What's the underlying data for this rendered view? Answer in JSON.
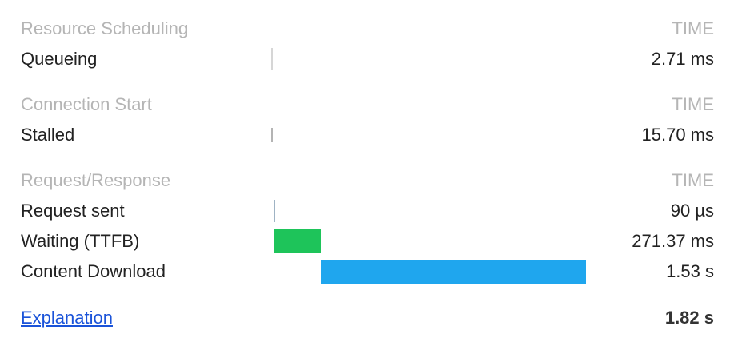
{
  "sections": [
    {
      "title": "Resource Scheduling",
      "time_header": "TIME",
      "rows": [
        {
          "label": "Queueing",
          "value": "2.71 ms",
          "start_s": 0,
          "duration_s": 0.00271,
          "color": "#d6d6d6"
        }
      ]
    },
    {
      "title": "Connection Start",
      "time_header": "TIME",
      "rows": [
        {
          "label": "Stalled",
          "value": "15.70 ms",
          "start_s": 0.00271,
          "duration_s": 0.0157,
          "color": "#b4b4b4"
        }
      ]
    },
    {
      "title": "Request/Response",
      "time_header": "TIME",
      "rows": [
        {
          "label": "Request sent",
          "value": "90 µs",
          "start_s": 0.01841,
          "duration_s": 9e-05,
          "color": "#9fb3c4"
        },
        {
          "label": "Waiting (TTFB)",
          "value": "271.37 ms",
          "start_s": 0.0185,
          "duration_s": 0.27137,
          "color": "#1ec45a"
        },
        {
          "label": "Content Download",
          "value": "1.53 s",
          "start_s": 0.28987,
          "duration_s": 1.53,
          "color": "#1fa6ee"
        }
      ]
    }
  ],
  "footer": {
    "explanation_label": "Explanation",
    "total": "1.82 s"
  }
}
